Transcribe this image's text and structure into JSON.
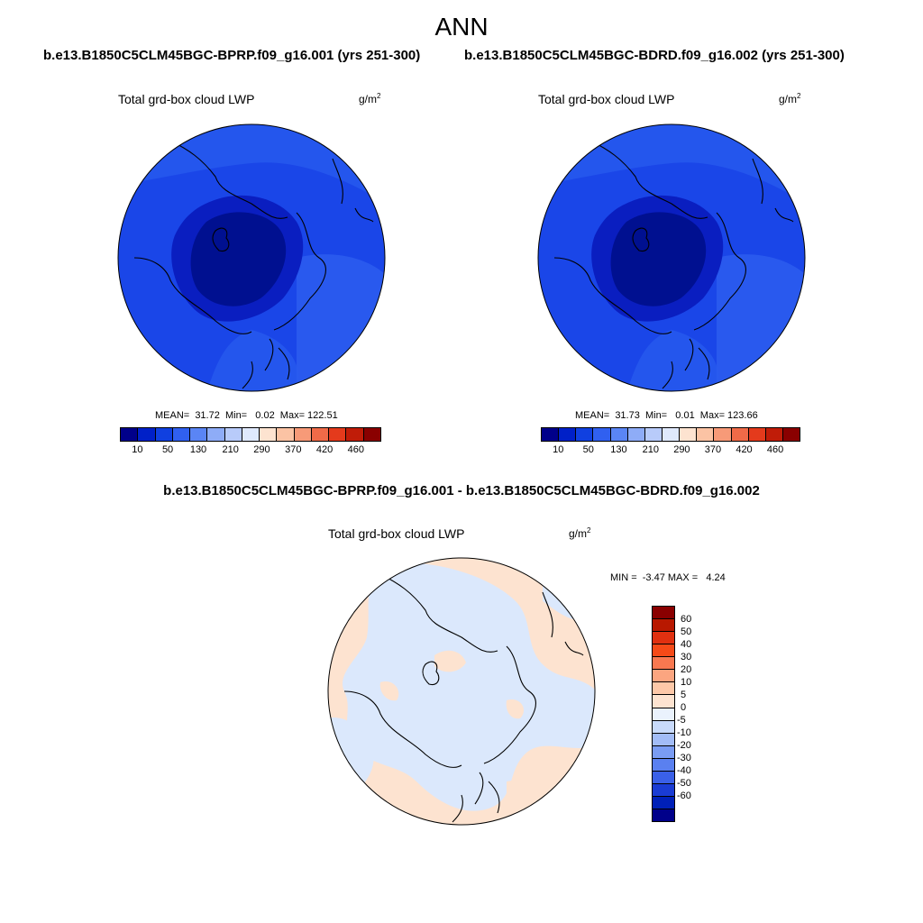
{
  "figure": {
    "season": "ANN",
    "diff_title": "b.e13.B1850C5CLM45BGC-BPRP.f09_g16.001 - b.e13.B1850C5CLM45BGC-BDRD.f09_g16.002"
  },
  "panels": [
    {
      "case_title": "b.e13.B1850C5CLM45BGC-BPRP.f09_g16.001 (yrs 251-300)",
      "variable": "Total grd-box cloud LWP",
      "units_base": "g/m",
      "units_exp": "2",
      "stats": "MEAN=  31.72  Min=   0.02  Max= 122.51"
    },
    {
      "case_title": "b.e13.B1850C5CLM45BGC-BDRD.f09_g16.002 (yrs 251-300)",
      "variable": "Total grd-box cloud LWP",
      "units_base": "g/m",
      "units_exp": "2",
      "stats": "MEAN=  31.73  Min=   0.01  Max= 123.66"
    }
  ],
  "diff_panel": {
    "variable": "Total grd-box cloud LWP",
    "units_base": "g/m",
    "units_exp": "2",
    "stats": "MIN =  -3.47 MAX =   4.24"
  },
  "colorbar_top": {
    "colors": [
      "#00008a",
      "#0020c8",
      "#1040e0",
      "#3060f0",
      "#5a85f5",
      "#8eacf7",
      "#b8cbfa",
      "#dfe9fc",
      "#fde3d0",
      "#fbc3a4",
      "#f79a78",
      "#f06a48",
      "#e43a1c",
      "#c01c08",
      "#8a0000"
    ],
    "labels": [
      "10",
      "50",
      "130",
      "210",
      "290",
      "370",
      "420",
      "460"
    ]
  },
  "colorbar_diff": {
    "colors": [
      "#8a0000",
      "#b81800",
      "#e03010",
      "#f54a18",
      "#f87850",
      "#fba580",
      "#fdc8a8",
      "#fde3d0",
      "#eaf2fd",
      "#c8dafb",
      "#a2bcf7",
      "#7a9cf3",
      "#5a80f0",
      "#3a60e8",
      "#1a3cd4",
      "#0020b8",
      "#00008a"
    ],
    "labels": [
      "60",
      "50",
      "40",
      "30",
      "20",
      "10",
      "5",
      "0",
      "-5",
      "-10",
      "-20",
      "-30",
      "-40",
      "-50",
      "-60"
    ]
  }
}
